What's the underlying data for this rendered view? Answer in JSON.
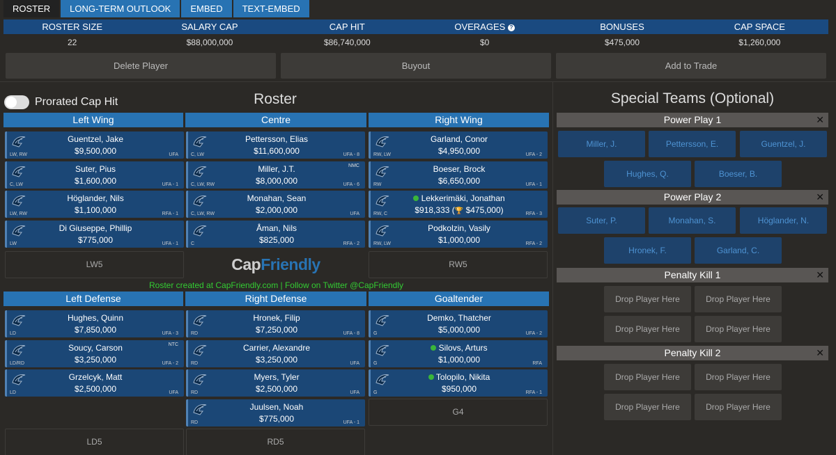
{
  "tabs": [
    "Roster",
    "Long-Term Outlook",
    "Embed",
    "Text-Embed"
  ],
  "summary": {
    "headers": [
      "Roster Size",
      "Salary Cap",
      "Cap Hit",
      "Overages",
      "Bonuses",
      "Cap Space"
    ],
    "values": [
      "22",
      "$88,000,000",
      "$86,740,000",
      "$0",
      "$475,000",
      "$1,260,000"
    ]
  },
  "actions": {
    "delete": "Delete Player",
    "buyout": "Buyout",
    "trade": "Add to Trade"
  },
  "toggle_label": "Prorated Cap Hit",
  "roster_title": "Roster",
  "special_title": "Special Teams (Optional)",
  "columns": {
    "lw": "Left Wing",
    "c": "Centre",
    "rw": "Right Wing",
    "ld": "Left Defense",
    "rd": "Right Defense",
    "g": "Goaltender"
  },
  "players": {
    "lw": [
      {
        "name": "Guentzel, Jake",
        "cap": "$9,500,000",
        "pos": "LW, RW",
        "contract": "UFA",
        "clause": ""
      },
      {
        "name": "Suter, Pius",
        "cap": "$1,600,000",
        "pos": "C, LW",
        "contract": "UFA - 1",
        "clause": ""
      },
      {
        "name": "Höglander, Nils",
        "cap": "$1,100,000",
        "pos": "LW, RW",
        "contract": "RFA - 1",
        "clause": ""
      },
      {
        "name": "Di Giuseppe, Phillip",
        "cap": "$775,000",
        "pos": "LW",
        "contract": "UFA - 1",
        "clause": ""
      }
    ],
    "c": [
      {
        "name": "Pettersson, Elias",
        "cap": "$11,600,000",
        "pos": "C, LW",
        "contract": "UFA - 8",
        "clause": ""
      },
      {
        "name": "Miller, J.T.",
        "cap": "$8,000,000",
        "pos": "C, LW, RW",
        "contract": "UFA - 6",
        "clause": "NMC"
      },
      {
        "name": "Monahan, Sean",
        "cap": "$2,000,000",
        "pos": "C, LW, RW",
        "contract": "UFA",
        "clause": ""
      },
      {
        "name": "Åman, Nils",
        "cap": "$825,000",
        "pos": "C",
        "contract": "RFA - 2",
        "clause": ""
      }
    ],
    "rw": [
      {
        "name": "Garland, Conor",
        "cap": "$4,950,000",
        "pos": "RW, LW",
        "contract": "UFA - 2",
        "clause": ""
      },
      {
        "name": "Boeser, Brock",
        "cap": "$6,650,000",
        "pos": "RW",
        "contract": "UFA - 1",
        "clause": ""
      },
      {
        "name": "Lekkerimäki, Jonathan",
        "cap": "$918,333",
        "bonus": "$475,000",
        "pos": "RW, C",
        "contract": "RFA - 3",
        "clause": ""
      },
      {
        "name": "Podkolzin, Vasily",
        "cap": "$1,000,000",
        "pos": "RW, LW",
        "contract": "RFA - 2",
        "clause": ""
      }
    ],
    "ld": [
      {
        "name": "Hughes, Quinn",
        "cap": "$7,850,000",
        "pos": "LD",
        "contract": "UFA - 3",
        "clause": ""
      },
      {
        "name": "Soucy, Carson",
        "cap": "$3,250,000",
        "pos": "LD/RD",
        "contract": "UFA - 2",
        "clause": "NTC"
      },
      {
        "name": "Grzelcyk, Matt",
        "cap": "$2,500,000",
        "pos": "LD",
        "contract": "UFA",
        "clause": ""
      }
    ],
    "rd": [
      {
        "name": "Hronek, Filip",
        "cap": "$7,250,000",
        "pos": "RD",
        "contract": "UFA - 8",
        "clause": ""
      },
      {
        "name": "Carrier, Alexandre",
        "cap": "$3,250,000",
        "pos": "RD",
        "contract": "UFA",
        "clause": ""
      },
      {
        "name": "Myers, Tyler",
        "cap": "$2,500,000",
        "pos": "RD",
        "contract": "UFA",
        "clause": ""
      },
      {
        "name": "Juulsen, Noah",
        "cap": "$775,000",
        "pos": "RD",
        "contract": "UFA - 1",
        "clause": ""
      }
    ],
    "g": [
      {
        "name": "Demko, Thatcher",
        "cap": "$5,000,000",
        "pos": "G",
        "contract": "UFA - 2",
        "clause": ""
      },
      {
        "name": "Silovs, Arturs",
        "cap": "$1,000,000",
        "pos": "G",
        "contract": "RFA",
        "clause": ""
      },
      {
        "name": "Tolopilo, Nikita",
        "cap": "$950,000",
        "pos": "G",
        "contract": "RFA - 1",
        "clause": ""
      }
    ]
  },
  "empty_slots": {
    "lw5": "LW5",
    "rw5": "RW5",
    "g4": "G4",
    "ld5": "LD5",
    "rd5": "RD5"
  },
  "brand": {
    "cap": "Cap",
    "friendly": "Friendly"
  },
  "credit": "Roster created at CapFriendly.com | Follow on Twitter @CapFriendly",
  "special_teams": {
    "pp1": {
      "title": "Power Play 1",
      "slots": [
        "Miller, J.",
        "Pettersson, E.",
        "Guentzel, J.",
        "Hughes, Q.",
        "Boeser, B."
      ]
    },
    "pp2": {
      "title": "Power Play 2",
      "slots": [
        "Suter, P.",
        "Monahan, S.",
        "Höglander, N.",
        "Hronek, F.",
        "Garland, C."
      ]
    },
    "pk1": {
      "title": "Penalty Kill 1",
      "slots": [
        "Drop Player Here",
        "Drop Player Here",
        "Drop Player Here",
        "Drop Player Here"
      ]
    },
    "pk2": {
      "title": "Penalty Kill 2",
      "slots": [
        "Drop Player Here",
        "Drop Player Here",
        "Drop Player Here",
        "Drop Player Here"
      ]
    }
  },
  "colors": {
    "header_blue": "#2873b3",
    "card_blue": "#1b4776",
    "bg": "#2b2926",
    "green": "#33cc33"
  }
}
